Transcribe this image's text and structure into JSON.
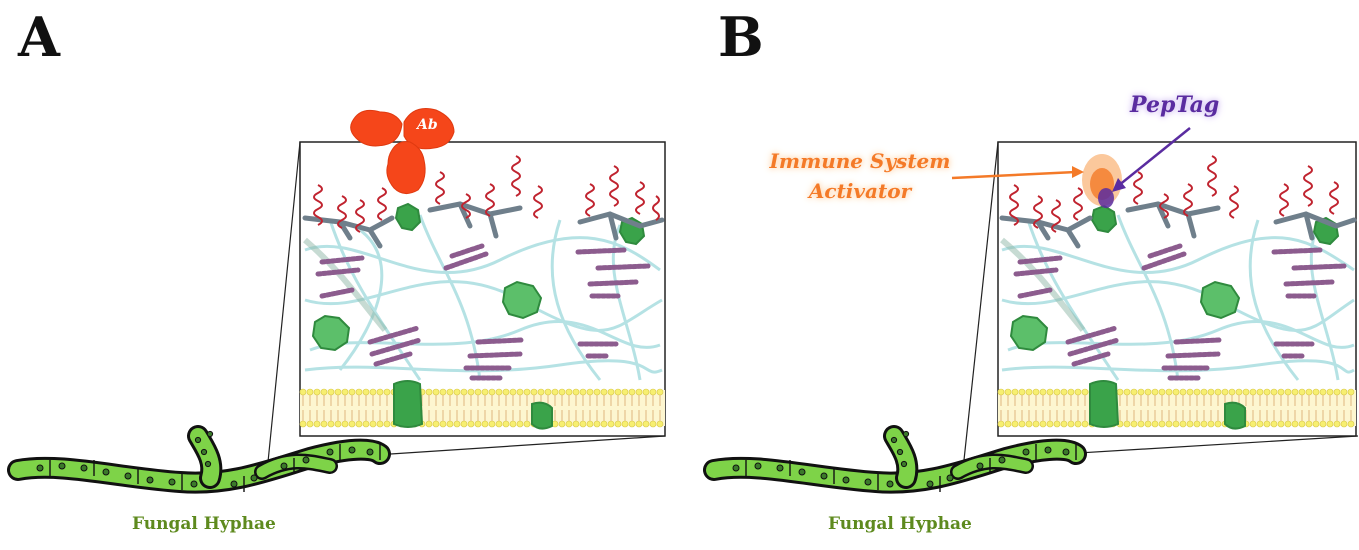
{
  "panels": [
    {
      "letter": "A",
      "caption": "Fungal Hyphae",
      "antibody_label": "Ab"
    },
    {
      "letter": "B",
      "caption": "Fungal Hyphae",
      "immune_label": "Immune System Activator",
      "peptag_label": "PepTag"
    }
  ],
  "colors": {
    "hyphae_fill": "#7ed348",
    "hyphae_outline": "#111111",
    "antibody": "#f5461a",
    "helix": "#c0232f",
    "glycan": "#6f7f8b",
    "membrane_heads": "#f7ef70",
    "protein_green": "#3aa34a",
    "fibers": "#a9dde0",
    "purple_strands": "#8c5c8e",
    "immune_glow": "#f47a28",
    "peptag": "#5a2ca0",
    "caption_green": "#5e8a1e"
  }
}
